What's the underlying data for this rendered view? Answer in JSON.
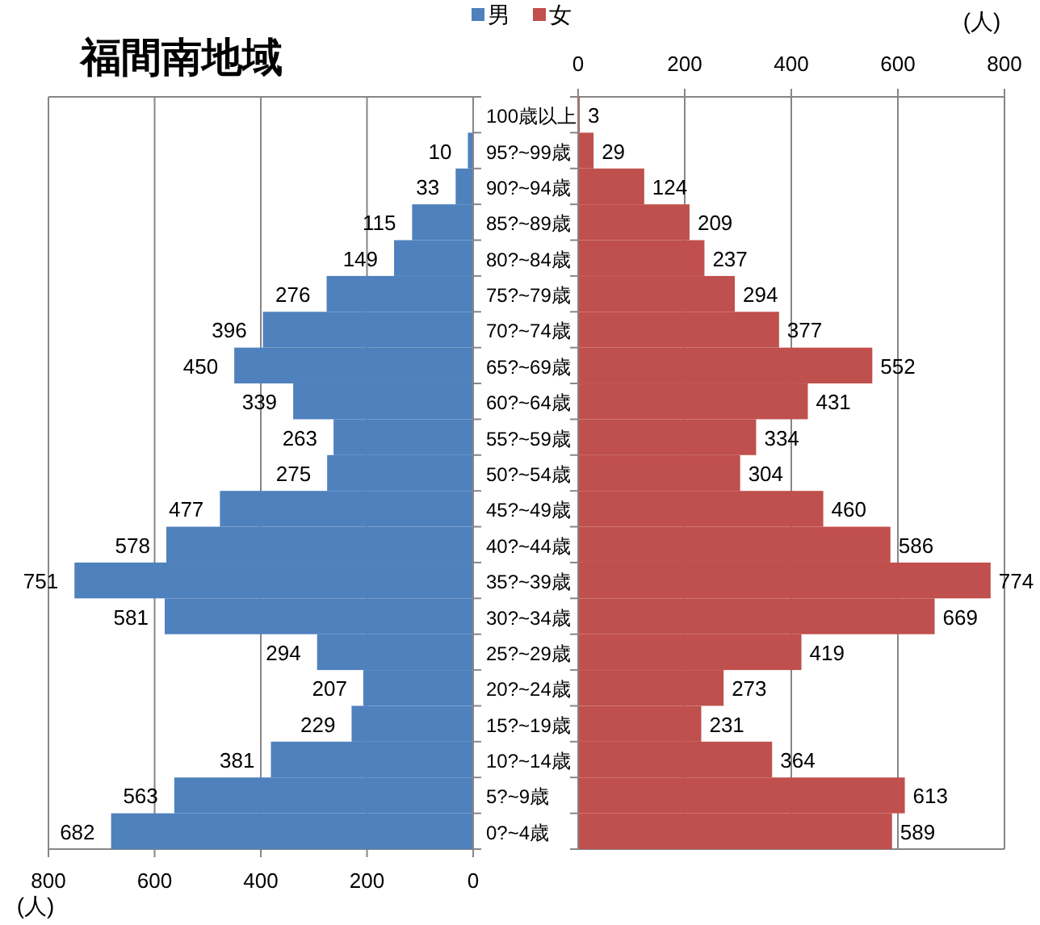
{
  "chart_data": [
    {
      "type": "bar",
      "orientation": "horizontal",
      "title": "福間南地域",
      "xlabel": "(人)",
      "categories": [
        null,
        null,
        null,
        null,
        null,
        null,
        null,
        null,
        null,
        null,
        null,
        null,
        null,
        null,
        null,
        null,
        null,
        null,
        null,
        null,
        null
      ],
      "series": [
        {
          "name": "男",
          "color": "#4f81bd",
          "values": [
            null,
            10,
            33,
            115,
            149,
            276,
            396,
            450,
            339,
            263,
            275,
            477,
            578,
            751,
            581,
            294,
            207,
            229,
            381,
            563,
            682
          ]
        }
      ],
      "xlim": [
        800,
        0
      ],
      "xticks": [
        800,
        600,
        400,
        200,
        0
      ],
      "grid": "x",
      "legend": "top",
      "data_labels": true
    },
    {
      "type": "bar",
      "orientation": "horizontal",
      "xlabel": "(人)",
      "categories": [
        "100歳以上",
        "95?~99歳",
        "90?~94歳",
        "85?~89歳",
        "80?~84歳",
        "75?~79歳",
        "70?~74歳",
        "65?~69歳",
        "60?~64歳",
        "55?~59歳",
        "50?~54歳",
        "45?~49歳",
        "40?~44歳",
        "35?~39歳",
        "30?~34歳",
        "25?~29歳",
        "20?~24歳",
        "15?~19歳",
        "10?~14歳",
        "5?~9歳",
        "0?~4歳"
      ],
      "series": [
        {
          "name": "女",
          "color": "#c0504d",
          "values": [
            3,
            29,
            124,
            209,
            237,
            294,
            377,
            552,
            431,
            334,
            304,
            460,
            586,
            774,
            669,
            419,
            273,
            231,
            364,
            613,
            589
          ]
        }
      ],
      "xlim": [
        0,
        800
      ],
      "xticks": [
        0,
        200,
        400,
        600,
        800
      ],
      "grid": "x",
      "legend": "top",
      "data_labels": true
    }
  ]
}
